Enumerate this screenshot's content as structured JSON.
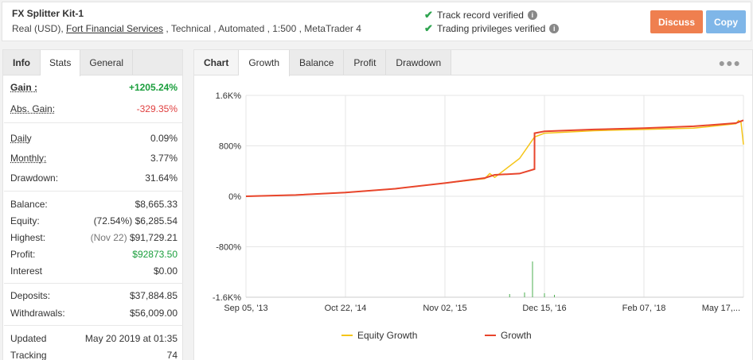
{
  "header": {
    "title": "FX Splitter Kit-1",
    "sub_prefix": "Real (USD), ",
    "broker": "Fort Financial Services",
    "sub_suffix": " , Technical , Automated , 1:500 , MetaTrader 4",
    "verified_track": "Track record verified",
    "verified_trading": "Trading privileges verified",
    "discuss": "Discuss",
    "copy": "Copy"
  },
  "left_tabs": [
    "Info",
    "Stats",
    "General"
  ],
  "stats": {
    "gain_label": "Gain :",
    "gain": "+1205.24%",
    "abs_gain_label": "Abs. Gain:",
    "abs_gain": "-329.35%",
    "daily_label": "Daily",
    "daily": "0.09%",
    "monthly_label": "Monthly:",
    "monthly": "3.77%",
    "drawdown_label": "Drawdown:",
    "drawdown": "31.64%",
    "balance_label": "Balance:",
    "balance": "$8,665.33",
    "equity_label": "Equity:",
    "equity_pct": "(72.54%)",
    "equity": "$6,285.54",
    "highest_label": "Highest:",
    "highest_date": "(Nov 22)",
    "highest": "$91,729.21",
    "profit_label": "Profit:",
    "profit": "$92873.50",
    "interest_label": "Interest",
    "interest": "$0.00",
    "deposits_label": "Deposits:",
    "deposits": "$37,884.85",
    "withdrawals_label": "Withdrawals:",
    "withdrawals": "$56,009.00",
    "updated_label": "Updated",
    "updated": "May 20 2019 at 01:35",
    "tracking_label": "Tracking",
    "tracking": "74"
  },
  "chart_tabs": [
    "Chart",
    "Growth",
    "Balance",
    "Profit",
    "Drawdown"
  ],
  "colors": {
    "growth": "#e8452c",
    "equity": "#f5c518",
    "volume": "#4caf50",
    "green": "#1a9e3c",
    "red": "#e04040"
  },
  "chart_data": {
    "type": "line",
    "x_ticks": [
      "Sep 05, '13",
      "Oct 22, '14",
      "Nov 02, '15",
      "Dec 15, '16",
      "Feb 07, '18",
      "May 17,..."
    ],
    "y_ticks": [
      "1.6K%",
      "800%",
      "0%",
      "-800%",
      "-1.6K%"
    ],
    "ylim": [
      -1600,
      1600
    ],
    "grid": true,
    "legend_position": "bottom",
    "series": [
      {
        "name": "Equity Growth",
        "x": [
          0,
          0.1,
          0.2,
          0.3,
          0.4,
          0.48,
          0.49,
          0.5,
          0.55,
          0.58,
          0.6,
          0.7,
          0.8,
          0.9,
          0.985,
          0.99,
          0.995,
          1.0
        ],
        "values": [
          0,
          20,
          60,
          120,
          210,
          280,
          360,
          300,
          600,
          940,
          1000,
          1040,
          1060,
          1080,
          1150,
          1200,
          1180,
          820
        ]
      },
      {
        "name": "Growth",
        "x": [
          0,
          0.1,
          0.2,
          0.3,
          0.4,
          0.48,
          0.5,
          0.55,
          0.58,
          0.5801,
          0.6,
          0.7,
          0.8,
          0.9,
          0.985,
          1.0
        ],
        "values": [
          0,
          20,
          60,
          120,
          210,
          290,
          340,
          360,
          430,
          1000,
          1030,
          1060,
          1080,
          1110,
          1160,
          1205
        ]
      }
    ]
  }
}
